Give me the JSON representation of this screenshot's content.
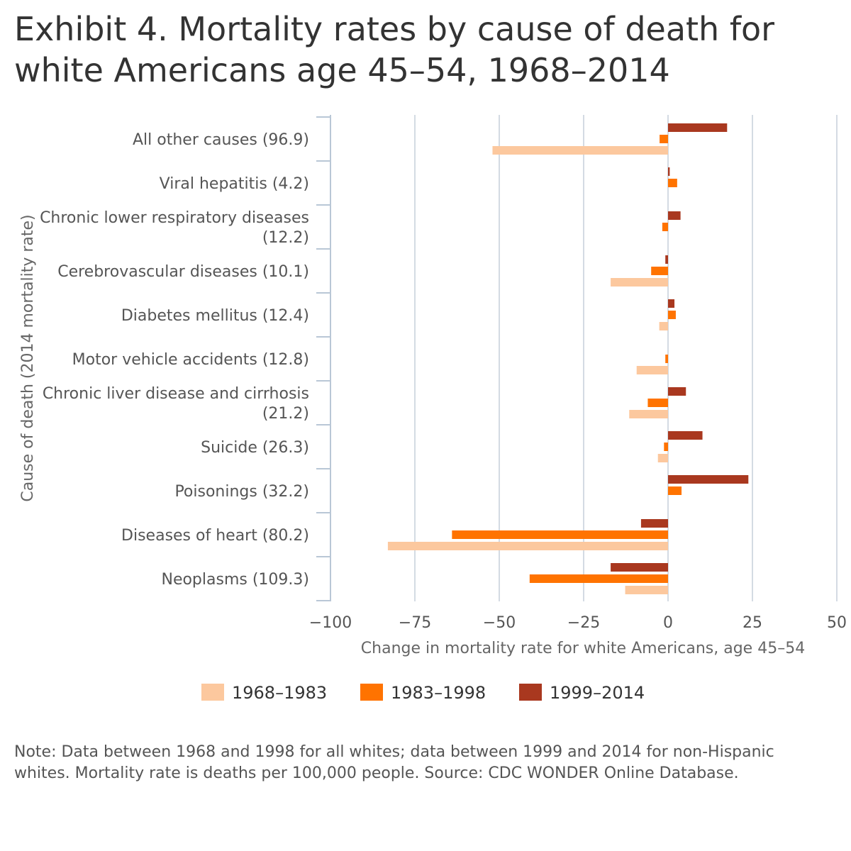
{
  "title": "Exhibit 4. Mortality rates by cause of death for white Americans age 45–54, 1968–2014",
  "note": "Note: Data between 1968 and 1998 for all whites; data between 1999 and 2014 for non-Hispanic whites. Mortality rate is deaths per 100,000 people. Source: CDC WONDER Online Database.",
  "chart_data": {
    "type": "bar",
    "orientation": "horizontal",
    "title": "Exhibit 4. Mortality rates by cause of death for white Americans age 45–54, 1968–2014",
    "xlabel": "Change in mortality rate for white Americans, age 45–54",
    "ylabel": "Cause of death (2014 mortality rate)",
    "xlim": [
      -100,
      50
    ],
    "xticks": [
      -100,
      -75,
      -50,
      -25,
      0,
      25,
      50
    ],
    "xtick_labels": [
      "−100",
      "−75",
      "−50",
      "−25",
      "0",
      "25",
      "50"
    ],
    "grid": true,
    "legend_position": "bottom",
    "categories": [
      [
        "All other causes (96.9)"
      ],
      [
        "Viral hepatitis (4.2)"
      ],
      [
        "Chronic lower respiratory diseases",
        "(12.2)"
      ],
      [
        "Cerebrovascular diseases (10.1)"
      ],
      [
        "Diabetes mellitus (12.4)"
      ],
      [
        "Motor vehicle accidents (12.8)"
      ],
      [
        "Chronic liver disease and cirrhosis",
        "(21.2)"
      ],
      [
        "Suicide (26.3)"
      ],
      [
        "Poisonings (32.2)"
      ],
      [
        "Diseases of heart (80.2)"
      ],
      [
        "Neoplasms (109.3)"
      ]
    ],
    "series": [
      {
        "name": "1999–2014",
        "color": "#a9381f",
        "values": [
          17.5,
          0.5,
          3.7,
          -0.8,
          1.9,
          0,
          5.3,
          10.2,
          23.8,
          -8,
          -17
        ]
      },
      {
        "name": "1983–1998",
        "color": "#ff7300",
        "values": [
          -2.5,
          2.7,
          -1.7,
          -5,
          2.3,
          -0.8,
          -6,
          -1.2,
          4,
          -64,
          -41
        ]
      },
      {
        "name": "1968–1983",
        "color": "#fcc89e",
        "values": [
          -52,
          0,
          0,
          -17,
          -2.6,
          -9.3,
          -11.5,
          -3,
          0,
          -83,
          -12.7
        ]
      }
    ],
    "legend_order": [
      "1968–1983",
      "1983–1998",
      "1999–2014"
    ]
  }
}
